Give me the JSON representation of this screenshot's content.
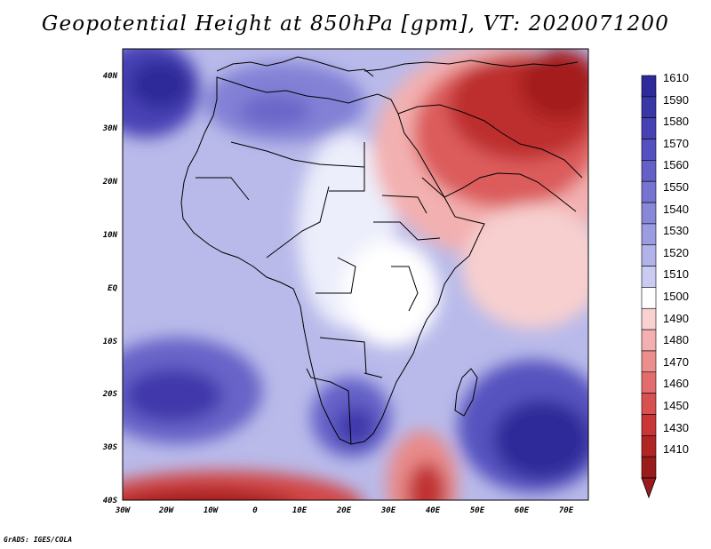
{
  "title": "Geopotential Height at 850hPa [gpm], VT: 2020071200",
  "credit": "GrADS: IGES/COLA",
  "axes": {
    "lon_ticks": [
      "30W",
      "20W",
      "10W",
      "0",
      "10E",
      "20E",
      "30E",
      "40E",
      "50E",
      "60E",
      "70E"
    ],
    "lat_ticks": [
      "40N",
      "30N",
      "20N",
      "10N",
      "EQ",
      "10S",
      "20S",
      "30S",
      "40S"
    ]
  },
  "colorbar": {
    "levels": [
      "1610",
      "1590",
      "1580",
      "1570",
      "1560",
      "1550",
      "1540",
      "1530",
      "1520",
      "1510",
      "1500",
      "1490",
      "1480",
      "1470",
      "1460",
      "1450",
      "1430",
      "1410"
    ],
    "colors": [
      "#2e2a9a",
      "#3936a6",
      "#4741b3",
      "#5550bf",
      "#6460c8",
      "#7674d0",
      "#8887d8",
      "#9c9ce0",
      "#b2b3e9",
      "#cacbf2",
      "#ffffff",
      "#f9d1d1",
      "#f3b0b0",
      "#ec8e8e",
      "#e36d6d",
      "#d85050",
      "#c93636",
      "#b22525",
      "#9a1b1b"
    ]
  },
  "field_colors": {
    "deep_blue": "#3b34a8",
    "mid_blue": "#6a66c9",
    "light_blue": "#b9baea",
    "white": "#ffffff",
    "light_red": "#f6c8c8",
    "mid_red": "#e57a7a",
    "deep_red": "#b62424"
  }
}
